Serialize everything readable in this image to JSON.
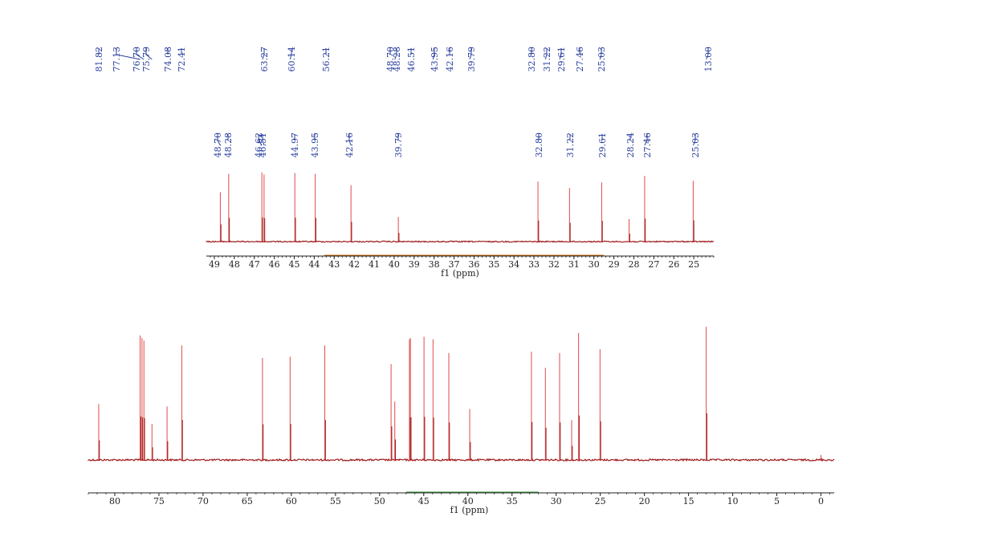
{
  "colors": {
    "spectrum": "#9e1b1b",
    "peak": "#e04b4b",
    "label": "#2a3f9e",
    "axis": "#222222",
    "axis_band": "#3a9a3a",
    "inset_band": "#cc6600"
  },
  "chart_data": [
    {
      "type": "line",
      "name": "main-spectrum",
      "xlabel": "f1 (ppm)",
      "xlim": [
        83,
        -1.5
      ],
      "ticks": [
        80,
        75,
        70,
        65,
        60,
        55,
        50,
        45,
        40,
        35,
        30,
        25,
        20,
        15,
        10,
        5,
        0
      ],
      "tick_labels": [
        "80",
        "75",
        "70",
        "65",
        "60",
        "55",
        "50",
        "45",
        "40",
        "35",
        "30",
        "25",
        "20",
        "15",
        "10",
        "5",
        "0"
      ],
      "axis_band_ppm": [
        47,
        32
      ],
      "peak_labels": [
        "81.82",
        "77.13",
        "76.70",
        "75.79",
        "74.08",
        "72.41",
        "63.27",
        "60.14",
        "56.21",
        "48.70",
        "48.28",
        "46.51",
        "43.95",
        "42.16",
        "39.79",
        "32.80",
        "31.22",
        "29.61",
        "27.46",
        "25.03",
        "13.00"
      ],
      "peaks": [
        {
          "ppm": 81.82,
          "h": 0.45
        },
        {
          "ppm": 77.13,
          "h": 1.0
        },
        {
          "ppm": 76.92,
          "h": 0.98
        },
        {
          "ppm": 76.7,
          "h": 0.96
        },
        {
          "ppm": 75.79,
          "h": 0.29
        },
        {
          "ppm": 74.08,
          "h": 0.43
        },
        {
          "ppm": 72.41,
          "h": 0.92
        },
        {
          "ppm": 63.27,
          "h": 0.82
        },
        {
          "ppm": 60.14,
          "h": 0.83
        },
        {
          "ppm": 56.21,
          "h": 0.92
        },
        {
          "ppm": 48.7,
          "h": 0.77
        },
        {
          "ppm": 48.28,
          "h": 0.47
        },
        {
          "ppm": 46.62,
          "h": 0.97
        },
        {
          "ppm": 46.51,
          "h": 0.98
        },
        {
          "ppm": 44.97,
          "h": 0.99
        },
        {
          "ppm": 43.95,
          "h": 0.97
        },
        {
          "ppm": 42.16,
          "h": 0.86
        },
        {
          "ppm": 39.79,
          "h": 0.41
        },
        {
          "ppm": 32.8,
          "h": 0.87
        },
        {
          "ppm": 31.22,
          "h": 0.74
        },
        {
          "ppm": 29.61,
          "h": 0.86
        },
        {
          "ppm": 28.24,
          "h": 0.32
        },
        {
          "ppm": 27.46,
          "h": 1.02
        },
        {
          "ppm": 25.03,
          "h": 0.89
        },
        {
          "ppm": 13.0,
          "h": 1.07
        },
        {
          "ppm": 0.0,
          "h": 0.04
        }
      ]
    },
    {
      "type": "line",
      "name": "inset-spectrum",
      "xlabel": "f1 (ppm)",
      "xlim": [
        49.4,
        24.0
      ],
      "ticks": [
        49,
        48,
        47,
        46,
        45,
        44,
        43,
        42,
        41,
        40,
        39,
        38,
        37,
        36,
        35,
        34,
        33,
        32,
        31,
        30,
        29,
        28,
        27,
        26,
        25
      ],
      "tick_labels": [
        "49",
        "48",
        "47",
        "46",
        "45",
        "44",
        "43",
        "42",
        "41",
        "40",
        "39",
        "38",
        "37",
        "36",
        "35",
        "34",
        "33",
        "32",
        "31",
        "30",
        "29",
        "28",
        "27",
        "26",
        "25"
      ],
      "axis_band_ppm": [
        43.5,
        29.5
      ],
      "peak_labels": [
        "48.70",
        "48.28",
        "46.62",
        "46.51",
        "44.97",
        "43.95",
        "42.16",
        "39.79",
        "32.80",
        "31.22",
        "29.61",
        "28.24",
        "27.46",
        "25.03"
      ],
      "peaks": [
        {
          "ppm": 48.7,
          "h": 0.7
        },
        {
          "ppm": 48.28,
          "h": 0.96
        },
        {
          "ppm": 46.62,
          "h": 0.98
        },
        {
          "ppm": 46.51,
          "h": 0.95
        },
        {
          "ppm": 44.97,
          "h": 0.97
        },
        {
          "ppm": 43.95,
          "h": 0.96
        },
        {
          "ppm": 42.16,
          "h": 0.8
        },
        {
          "ppm": 39.79,
          "h": 0.35
        },
        {
          "ppm": 32.8,
          "h": 0.85
        },
        {
          "ppm": 31.22,
          "h": 0.76
        },
        {
          "ppm": 29.61,
          "h": 0.84
        },
        {
          "ppm": 28.24,
          "h": 0.32
        },
        {
          "ppm": 27.46,
          "h": 0.93
        },
        {
          "ppm": 25.03,
          "h": 0.86
        }
      ]
    }
  ]
}
